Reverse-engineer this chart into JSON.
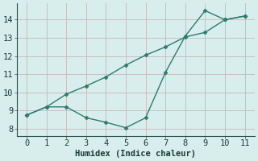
{
  "line1_x": [
    0,
    1,
    2,
    3,
    4,
    5,
    6,
    7,
    8,
    9,
    10,
    11
  ],
  "line1_y": [
    8.75,
    9.2,
    9.9,
    10.35,
    10.85,
    11.5,
    12.05,
    12.5,
    13.05,
    13.3,
    14.0,
    14.2
  ],
  "line2_x": [
    0,
    1,
    2,
    3,
    4,
    5,
    6,
    7,
    8,
    9,
    10,
    11
  ],
  "line2_y": [
    8.75,
    9.2,
    9.2,
    8.6,
    8.35,
    8.05,
    8.6,
    11.1,
    13.1,
    14.5,
    14.0,
    14.2
  ],
  "line_color": "#2d7a6e",
  "bg_color": "#d7eeed",
  "grid_color_major": "#c8b8b8",
  "grid_color_minor": "#d8c8c8",
  "xlabel": "Humidex (Indice chaleur)",
  "xlim": [
    -0.5,
    11.5
  ],
  "ylim": [
    7.6,
    14.9
  ],
  "xticks": [
    0,
    1,
    2,
    3,
    4,
    5,
    6,
    7,
    8,
    9,
    10,
    11
  ],
  "yticks": [
    8,
    9,
    10,
    11,
    12,
    13,
    14
  ],
  "xlabel_fontsize": 7.5,
  "tick_fontsize": 7.5
}
